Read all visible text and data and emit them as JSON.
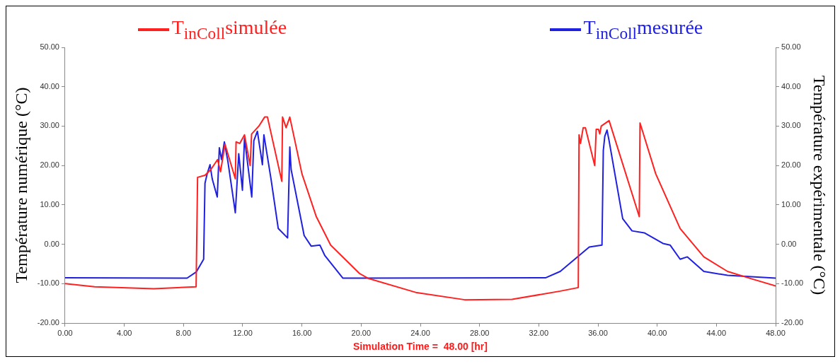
{
  "chart_data": {
    "type": "line",
    "xlabel": "Simulation Time =  48.00 [hr]",
    "ylabel": "Température numérique (°C)",
    "y2label": "Température expérimentale (°C)",
    "legend": "top",
    "marker": "none",
    "line_style": "solid",
    "grid": false,
    "xlim": [
      0,
      48
    ],
    "xticks": [
      {
        "value": 0,
        "label": "0.00"
      },
      {
        "value": 4,
        "label": "4.00"
      },
      {
        "value": 8,
        "label": "8.00"
      },
      {
        "value": 12,
        "label": "12.00"
      },
      {
        "value": 16,
        "label": "16.00"
      },
      {
        "value": 20,
        "label": "20.00"
      },
      {
        "value": 24,
        "label": "24.00"
      },
      {
        "value": 28,
        "label": "28.00"
      },
      {
        "value": 32,
        "label": "32.00"
      },
      {
        "value": 36,
        "label": "36.00"
      },
      {
        "value": 40,
        "label": "40.00"
      },
      {
        "value": 44,
        "label": "44.00"
      },
      {
        "value": 48,
        "label": "48.00"
      }
    ],
    "ylim": [
      -20,
      50
    ],
    "yticks": [
      {
        "value": -20,
        "label": "-20.00"
      },
      {
        "value": -10,
        "label": "-10.00"
      },
      {
        "value": 0,
        "label": "0.00"
      },
      {
        "value": 10,
        "label": "10.00"
      },
      {
        "value": 20,
        "label": "20.00"
      },
      {
        "value": 30,
        "label": "30.00"
      },
      {
        "value": 40,
        "label": "40.00"
      },
      {
        "value": 50,
        "label": "50.00"
      }
    ],
    "y2lim": [
      -20,
      50
    ],
    "y2ticks": [
      {
        "value": -20,
        "label": "-20.00"
      },
      {
        "value": -10,
        "label": "-10.00"
      },
      {
        "value": 0,
        "label": "0.00"
      },
      {
        "value": 10,
        "label": "10.00"
      },
      {
        "value": 20,
        "label": "20.00"
      },
      {
        "value": 30,
        "label": "30.00"
      },
      {
        "value": 40,
        "label": "40.00"
      },
      {
        "value": 50,
        "label": "50.00"
      }
    ],
    "series": [
      {
        "name": "T$_{inColl}$simulée",
        "color": "#ff2020",
        "x": [
          0,
          2,
          6,
          8.85,
          8.95,
          9.45,
          9.85,
          10.3,
          10.5,
          10.8,
          11.5,
          11.55,
          11.8,
          12.12,
          12.5,
          12.6,
          13.09,
          13.48,
          13.67,
          14.64,
          14.69,
          14.93,
          15.18,
          16.0,
          16.97,
          17.94,
          19.88,
          20.5,
          23.76,
          27.0,
          30.2,
          33.45,
          34.67,
          34.72,
          34.82,
          35.0,
          35.15,
          35.78,
          35.88,
          36.03,
          36.12,
          36.22,
          36.75,
          38.79,
          38.84,
          39.9,
          41.55,
          43.15,
          44.75,
          46.4,
          48
        ],
        "values": [
          -10,
          -10.8,
          -11.3,
          -10.8,
          17,
          17.5,
          19,
          21.5,
          18.4,
          25.4,
          16.6,
          26,
          25.6,
          27.8,
          20,
          28,
          30,
          32.3,
          32.3,
          16,
          32.3,
          29.6,
          32.3,
          17.9,
          7,
          -0.2,
          -7.4,
          -8.7,
          -12.3,
          -14.1,
          -14,
          -11.9,
          -11,
          27.8,
          25.6,
          29.6,
          29.6,
          20,
          29.2,
          29.2,
          28,
          30,
          31.4,
          7,
          30.8,
          17.9,
          4,
          -3.2,
          -6.9,
          -8.8,
          -10.6
        ]
      },
      {
        "name": "T$_{inColl}$mesurée",
        "color": "#2020e0",
        "x": [
          0,
          8.24,
          8.87,
          9.36,
          9.45,
          9.6,
          9.79,
          9.94,
          10.28,
          10.42,
          10.57,
          10.76,
          11.0,
          11.5,
          11.73,
          11.98,
          12.12,
          12.61,
          12.75,
          12.99,
          13.33,
          13.43,
          13.91,
          14.4,
          15.03,
          15.18,
          15.27,
          16.15,
          16.63,
          17.21,
          17.55,
          18.76,
          32.48,
          33.45,
          35.41,
          36.27,
          36.36,
          36.46,
          36.61,
          36.75,
          37.67,
          38.3,
          39.13,
          40.39,
          40.87,
          41.55,
          42.04,
          43.15,
          44.75,
          48
        ],
        "values": [
          -8.5,
          -8.6,
          -7,
          -3.8,
          15.5,
          17.9,
          20.2,
          16.6,
          12,
          24.5,
          21.5,
          26,
          21,
          8,
          23,
          13.7,
          27,
          12,
          26.3,
          28.7,
          20.2,
          27.8,
          16.6,
          4,
          1.6,
          24.7,
          19,
          2.2,
          -0.5,
          -0.2,
          -2.9,
          -8.6,
          -8.5,
          -6.9,
          -0.7,
          -0.2,
          23.8,
          27.4,
          29,
          26.3,
          6.5,
          3.4,
          2.9,
          0.2,
          -0.2,
          -3.8,
          -3.2,
          -6.9,
          -7.9,
          -8.6
        ]
      }
    ]
  }
}
